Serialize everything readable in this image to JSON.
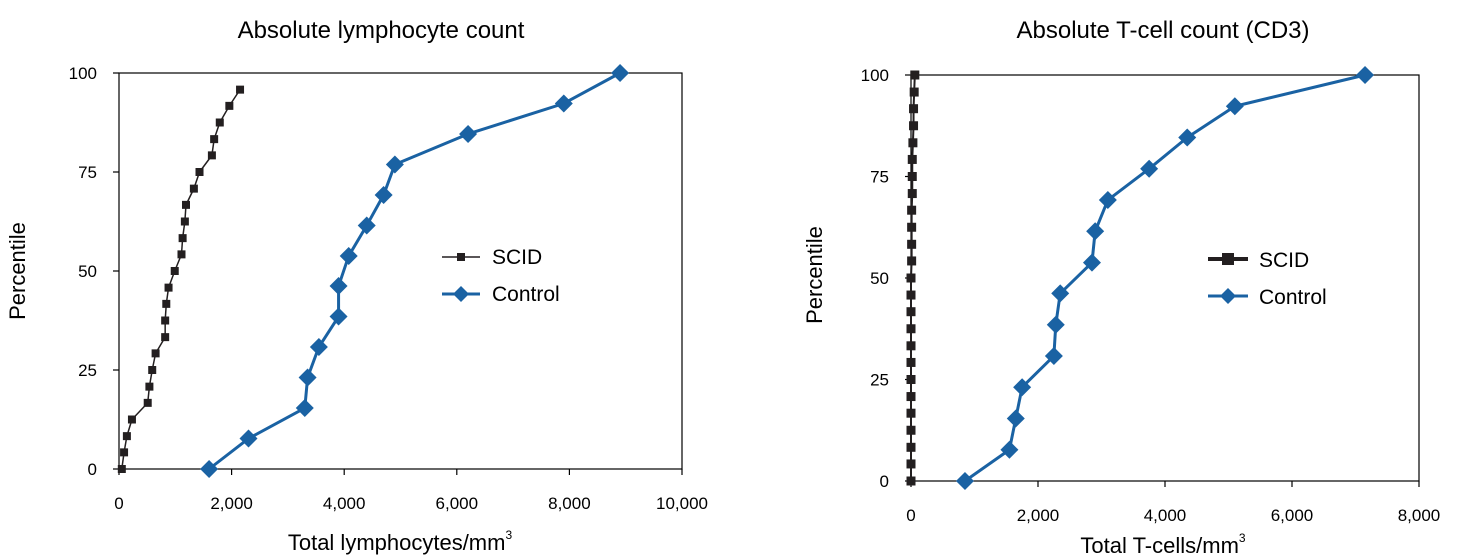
{
  "chart_data": [
    {
      "type": "line",
      "title": "Absolute lymphocyte count",
      "xlabel": "Total lymphocytes/mm",
      "xlabel_sup": "3",
      "ylabel": "Percentile",
      "xlim": [
        0,
        10000
      ],
      "ylim": [
        0,
        100
      ],
      "xticks": [
        "0",
        "2,000",
        "4,000",
        "6,000",
        "8,000",
        "10,000"
      ],
      "yticks": [
        "0",
        "25",
        "50",
        "75",
        "100"
      ],
      "legend": "center-right",
      "series": [
        {
          "name": "SCID",
          "color": "#231f20",
          "marker": "square",
          "x": [
            50,
            90,
            140,
            230,
            510,
            540,
            590,
            650,
            820,
            820,
            840,
            880,
            990,
            1110,
            1130,
            1170,
            1190,
            1330,
            1430,
            1650,
            1690,
            1790,
            1960,
            2150
          ],
          "y": [
            0,
            4.2,
            8.3,
            12.5,
            16.7,
            20.8,
            25,
            29.2,
            33.3,
            37.5,
            41.7,
            45.8,
            50,
            54.2,
            58.3,
            62.5,
            66.7,
            70.8,
            75,
            79.2,
            83.3,
            87.5,
            91.7,
            95.8
          ]
        },
        {
          "name": "Control",
          "color": "#1a62a3",
          "marker": "diamond",
          "x": [
            1600,
            2300,
            3300,
            3350,
            3550,
            3900,
            3900,
            4080,
            4400,
            4700,
            4900,
            6200,
            7900,
            8900
          ],
          "y": [
            0,
            7.7,
            15.4,
            23.1,
            30.8,
            38.5,
            46.2,
            53.8,
            61.5,
            69.2,
            76.9,
            84.6,
            92.3,
            100
          ]
        }
      ]
    },
    {
      "type": "line",
      "title": "Absolute T-cell count (CD3)",
      "xlabel": "Total T-cells/mm",
      "xlabel_sup": "3",
      "ylabel": "Percentile",
      "xlim": [
        0,
        8000
      ],
      "ylim": [
        0,
        100
      ],
      "xticks": [
        "0",
        "2,000",
        "4,000",
        "6,000",
        "8,000"
      ],
      "yticks": [
        "0",
        "25",
        "50",
        "75",
        "100"
      ],
      "legend": "center-right",
      "series": [
        {
          "name": "SCID",
          "color": "#231f20",
          "marker": "square",
          "x": [
            0,
            0,
            0,
            0,
            0,
            0,
            0,
            0,
            0,
            0,
            0,
            0,
            0,
            10,
            10,
            10,
            10,
            20,
            20,
            20,
            30,
            40,
            40,
            50,
            60
          ],
          "y": [
            0,
            4.2,
            8.3,
            12.5,
            16.7,
            20.8,
            25,
            29.2,
            33.3,
            37.5,
            41.7,
            45.8,
            50,
            54.2,
            58.3,
            62.5,
            66.7,
            70.8,
            75,
            79.2,
            83.3,
            87.5,
            91.7,
            95.8,
            100
          ]
        },
        {
          "name": "Control",
          "color": "#1a62a3",
          "marker": "diamond",
          "x": [
            850,
            1550,
            1650,
            1750,
            2250,
            2280,
            2350,
            2850,
            2900,
            3100,
            3750,
            4350,
            5100,
            7150
          ],
          "y": [
            0,
            7.7,
            15.4,
            23.1,
            30.8,
            38.5,
            46.2,
            53.8,
            61.5,
            69.2,
            76.9,
            84.6,
            92.3,
            100
          ]
        }
      ]
    }
  ]
}
